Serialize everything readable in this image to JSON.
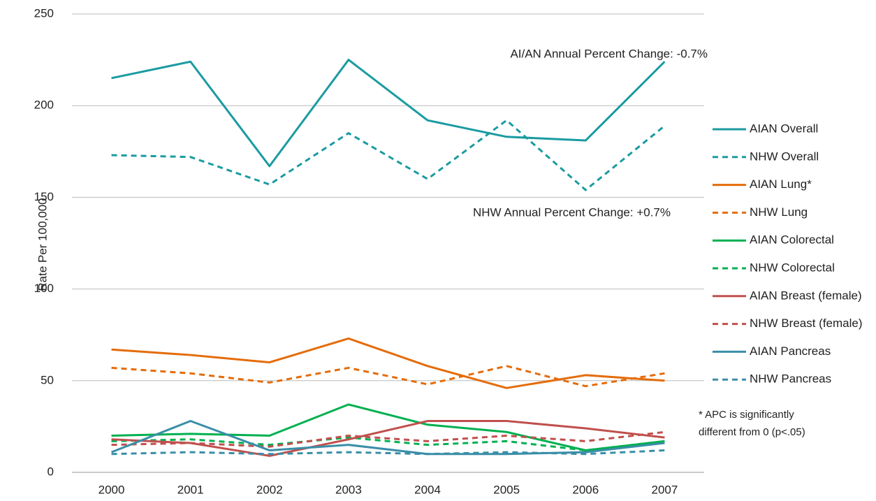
{
  "chart_data": {
    "type": "line",
    "y_label": "Rate Per 100,000",
    "categories": [
      "2000",
      "2001",
      "2002",
      "2003",
      "2004",
      "2005",
      "2006",
      "2007"
    ],
    "series": [
      {
        "name": "AIAN Overall",
        "color": "#1a9ba1",
        "style": "solid",
        "values": [
          215,
          224,
          167,
          225,
          192,
          183,
          181,
          224
        ]
      },
      {
        "name": "NHW Overall",
        "color": "#1a9ba1",
        "style": "dashed",
        "values": [
          173,
          172,
          157,
          185,
          160,
          192,
          154,
          189
        ]
      },
      {
        "name": "AIAN Lung*",
        "color": "#e46c0a",
        "style": "solid",
        "values": [
          67,
          64,
          60,
          73,
          58,
          46,
          53,
          50
        ]
      },
      {
        "name": "NHW Lung",
        "color": "#e46c0a",
        "style": "dashed",
        "values": [
          57,
          54,
          49,
          57,
          48,
          58,
          47,
          54
        ]
      },
      {
        "name": "AIAN Colorectal",
        "color": "#00b050",
        "style": "solid",
        "values": [
          20,
          21,
          20,
          37,
          26,
          22,
          12,
          17
        ]
      },
      {
        "name": "NHW Colorectal",
        "color": "#00b050",
        "style": "dashed",
        "values": [
          17,
          18,
          15,
          19,
          15,
          17,
          12,
          17
        ]
      },
      {
        "name": "AIAN Breast (female)",
        "color": "#c0504d",
        "style": "solid",
        "values": [
          18,
          16,
          9,
          18,
          28,
          28,
          24,
          19
        ]
      },
      {
        "name": "NHW Breast (female)",
        "color": "#c0504d",
        "style": "dashed",
        "values": [
          15,
          16,
          14,
          20,
          17,
          20,
          17,
          22
        ]
      },
      {
        "name": "AIAN Pancreas",
        "color": "#3a8ea8",
        "style": "solid",
        "values": [
          11,
          28,
          12,
          15,
          10,
          10,
          11,
          16
        ]
      },
      {
        "name": "NHW Pancreas",
        "color": "#3a8ea8",
        "style": "dashed",
        "values": [
          10,
          11,
          10,
          11,
          10,
          11,
          10,
          12
        ]
      }
    ],
    "ylim": [
      0,
      250
    ],
    "yticks": [
      0,
      50,
      100,
      150,
      200,
      250
    ],
    "grid": true,
    "annotations": [
      "AI/AN Annual Percent Change:  -0.7%",
      "NHW Annual Percent Change:  +0.7%",
      "* APC is significantly",
      "different from 0 (p<.05)"
    ]
  }
}
